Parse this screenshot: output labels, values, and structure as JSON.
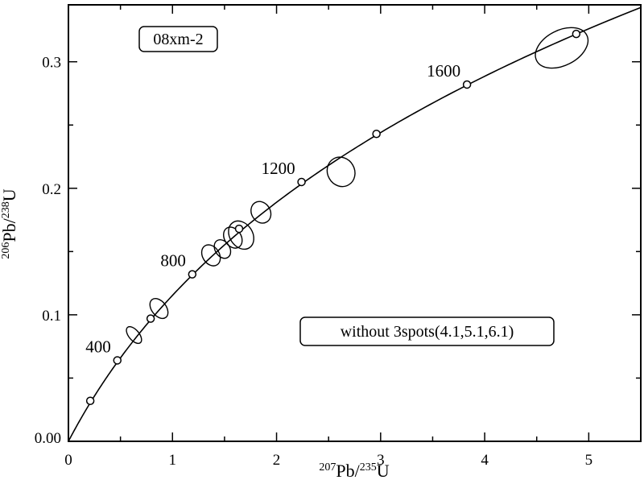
{
  "chart_data": {
    "type": "scatter",
    "subtype": "U-Pb concordia diagram with error ellipses",
    "annotations": {
      "sample_label": "08xm-2",
      "note": "without 3spots(4.1,5.1,6.1)"
    },
    "xlabel": {
      "sup1": "207",
      "base1": "Pb/",
      "sup2": "235",
      "base2": "U"
    },
    "ylabel": {
      "sup1": "206",
      "base1": "Pb/",
      "sup2": "238",
      "base2": "U"
    },
    "xlim": [
      0,
      5.5
    ],
    "ylim": [
      0,
      0.345
    ],
    "xticks": [
      {
        "value": 0,
        "label": "0"
      },
      {
        "value": 1,
        "label": "1"
      },
      {
        "value": 2,
        "label": "2"
      },
      {
        "value": 3,
        "label": "3"
      },
      {
        "value": 4,
        "label": "4"
      },
      {
        "value": 5,
        "label": "5"
      }
    ],
    "yticks": [
      {
        "value": 0,
        "label": "0.00"
      },
      {
        "value": 0.1,
        "label": "0.1"
      },
      {
        "value": 0.2,
        "label": "0.2"
      },
      {
        "value": 0.3,
        "label": "0.3"
      }
    ],
    "concordia_markers": [
      {
        "x": 0.21,
        "y": 0.032,
        "age_label": ""
      },
      {
        "x": 0.47,
        "y": 0.064,
        "age_label": "400"
      },
      {
        "x": 0.79,
        "y": 0.097,
        "age_label": ""
      },
      {
        "x": 1.19,
        "y": 0.132,
        "age_label": "800"
      },
      {
        "x": 1.64,
        "y": 0.168,
        "age_label": ""
      },
      {
        "x": 2.24,
        "y": 0.205,
        "age_label": "1200"
      },
      {
        "x": 2.96,
        "y": 0.243,
        "age_label": ""
      },
      {
        "x": 3.83,
        "y": 0.282,
        "age_label": "1600"
      },
      {
        "x": 4.88,
        "y": 0.322,
        "age_label": ""
      }
    ],
    "ellipses": [
      {
        "cx": 0.63,
        "cy": 0.084,
        "rx": 0.05,
        "ry": 0.006,
        "angle": -40
      },
      {
        "cx": 0.87,
        "cy": 0.105,
        "rx": 0.07,
        "ry": 0.007,
        "angle": -38
      },
      {
        "cx": 1.37,
        "cy": 0.147,
        "rx": 0.08,
        "ry": 0.007,
        "angle": -33
      },
      {
        "cx": 1.48,
        "cy": 0.152,
        "rx": 0.07,
        "ry": 0.006,
        "angle": -33
      },
      {
        "cx": 1.58,
        "cy": 0.161,
        "rx": 0.08,
        "ry": 0.007,
        "angle": -33
      },
      {
        "cx": 1.66,
        "cy": 0.163,
        "rx": 0.11,
        "ry": 0.01,
        "angle": -33
      },
      {
        "cx": 1.85,
        "cy": 0.181,
        "rx": 0.09,
        "ry": 0.007,
        "angle": -32
      },
      {
        "cx": 2.62,
        "cy": 0.213,
        "rx": 0.13,
        "ry": 0.01,
        "angle": -30
      },
      {
        "cx": 4.74,
        "cy": 0.311,
        "rx": 0.27,
        "ry": 0.012,
        "angle": -27
      }
    ],
    "grid": false,
    "legend": "none"
  }
}
